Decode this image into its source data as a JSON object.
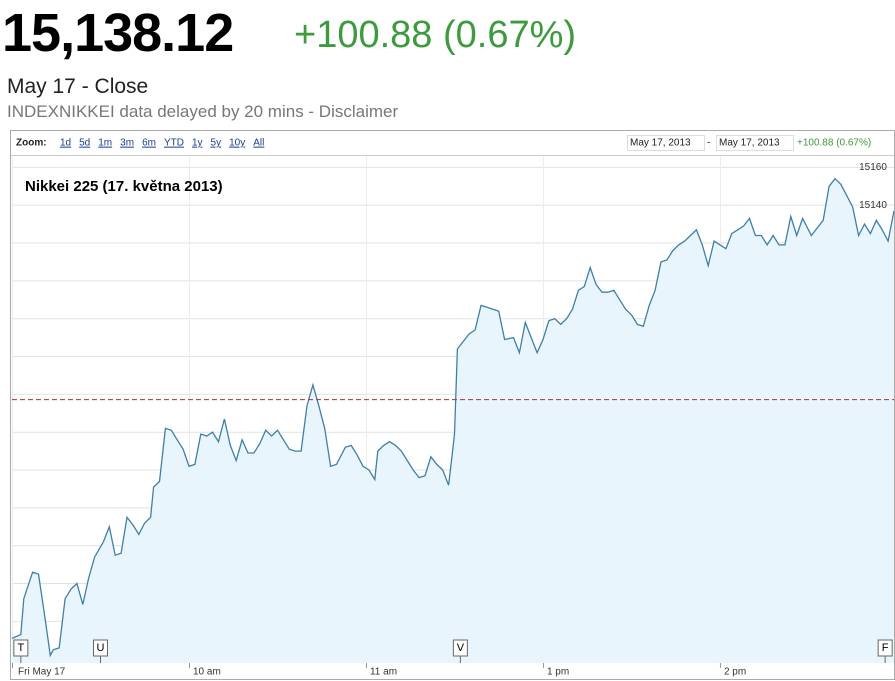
{
  "header": {
    "price": "15,138.12",
    "change": "+100.88 (0.67%)",
    "date_label": "May 17 - Close",
    "source": "INDEXNIKKEI data delayed by 20 mins - Disclaimer"
  },
  "toolbar": {
    "zoom_label": "Zoom:",
    "zoom_links": [
      "1d",
      "5d",
      "1m",
      "3m",
      "6m",
      "YTD",
      "1y",
      "5y",
      "10y",
      "All"
    ],
    "range_start": "May 17, 2013",
    "range_sep": "-",
    "range_end": "May 17, 2013",
    "range_change": "+100.88 (0.67%)"
  },
  "chart_data": {
    "type": "area",
    "title": "Nikkei 225 (17. května 2013)",
    "color": "#3f7fa8",
    "fill": "#e9f5fc",
    "x": [
      0,
      3,
      4,
      7,
      9,
      11,
      13,
      14,
      16,
      18,
      20,
      22,
      24,
      26,
      28,
      31,
      33,
      35,
      37,
      39,
      41,
      43,
      45,
      47,
      48,
      50,
      52,
      54,
      56,
      58,
      60,
      62,
      64,
      66,
      68,
      70,
      72,
      74,
      76,
      78,
      80,
      82,
      84,
      86,
      88,
      90,
      92,
      94,
      96,
      98,
      100,
      102,
      104,
      106,
      108,
      110,
      113,
      115,
      117,
      119,
      121,
      123,
      124,
      126,
      128,
      130,
      132,
      134,
      136,
      138,
      140,
      142,
      144,
      146,
      148,
      149,
      150,
      151,
      153,
      155,
      157,
      159,
      161,
      163,
      165,
      167,
      170,
      172,
      174,
      176,
      178,
      180,
      182,
      184,
      186,
      188,
      190,
      192,
      194,
      196,
      198,
      200,
      202,
      204,
      206,
      208,
      210,
      212,
      214,
      216,
      218,
      220,
      222,
      224,
      226,
      228,
      230,
      232,
      234,
      236,
      238,
      240,
      242,
      244,
      246,
      248,
      250,
      252,
      254,
      256,
      258,
      260,
      262,
      264,
      266,
      268,
      271,
      273,
      275,
      277,
      279,
      281,
      283,
      285,
      287,
      289,
      291,
      293,
      295,
      297,
      299
    ],
    "values": [
      14911,
      14913,
      14932,
      14946,
      14945,
      14924,
      14902,
      14905,
      14906,
      14932,
      14937,
      14940,
      14929,
      14943,
      14954,
      14962,
      14970,
      14955,
      14956,
      14975,
      14971,
      14966,
      14972,
      14975,
      14991,
      14994,
      15022,
      15021,
      15016,
      15011,
      15002,
      15003,
      15019,
      15018,
      15020,
      15015,
      15027,
      15013,
      15005,
      15016,
      15009,
      15009,
      15014,
      15021,
      15018,
      15021,
      15016,
      15011,
      15010,
      15010,
      15034,
      15045,
      15034,
      15022,
      15002,
      15003,
      15012,
      15013,
      15008,
      15002,
      15000,
      14995,
      15010,
      15013,
      15015,
      15013,
      15010,
      15005,
      15000,
      14996,
      14997,
      15007,
      15003,
      15000,
      14992,
      15005,
      15019,
      15064,
      15068,
      15072,
      15074,
      15087,
      15086,
      15085,
      15084,
      15069,
      15070,
      15062,
      15078,
      15070,
      15062,
      15069,
      15079,
      15080,
      15077,
      15080,
      15085,
      15095,
      15097,
      15107,
      15098,
      15094,
      15094,
      15095,
      15090,
      15085,
      15082,
      15077,
      15076,
      15087,
      15095,
      15110,
      15111,
      15116,
      15119,
      15121,
      15124,
      15127,
      15119,
      15108,
      15121,
      15119,
      15117,
      15125,
      15127,
      15129,
      15133,
      15124,
      15124,
      15119,
      15124,
      15119,
      15119,
      15134,
      15124,
      15133,
      15124,
      15128,
      15132,
      15150,
      15154,
      15151,
      15145,
      15139,
      15124,
      15130,
      15125,
      15132,
      15127,
      15121,
      15137
    ],
    "xlim": [
      0,
      299
    ],
    "xticks": [
      {
        "value": 0,
        "label": "Fri May 17"
      },
      {
        "value": 60,
        "label": "10 am"
      },
      {
        "value": 120,
        "label": "11 am"
      },
      {
        "value": 180,
        "label": "1 pm"
      },
      {
        "value": 240,
        "label": "2 pm"
      }
    ],
    "ylim": [
      14898,
      15166
    ],
    "yticks": [
      14900,
      14920,
      14940,
      14960,
      14980,
      15000,
      15020,
      15040,
      15060,
      15080,
      15100,
      15120,
      15140,
      15160
    ],
    "grid": true,
    "reference_line": {
      "value": 15037.24,
      "color": "#a33"
    },
    "flags": [
      {
        "x": 3,
        "label": "T"
      },
      {
        "x": 30,
        "label": "U"
      },
      {
        "x": 152,
        "label": "V"
      },
      {
        "x": 296,
        "label": "F"
      }
    ]
  }
}
